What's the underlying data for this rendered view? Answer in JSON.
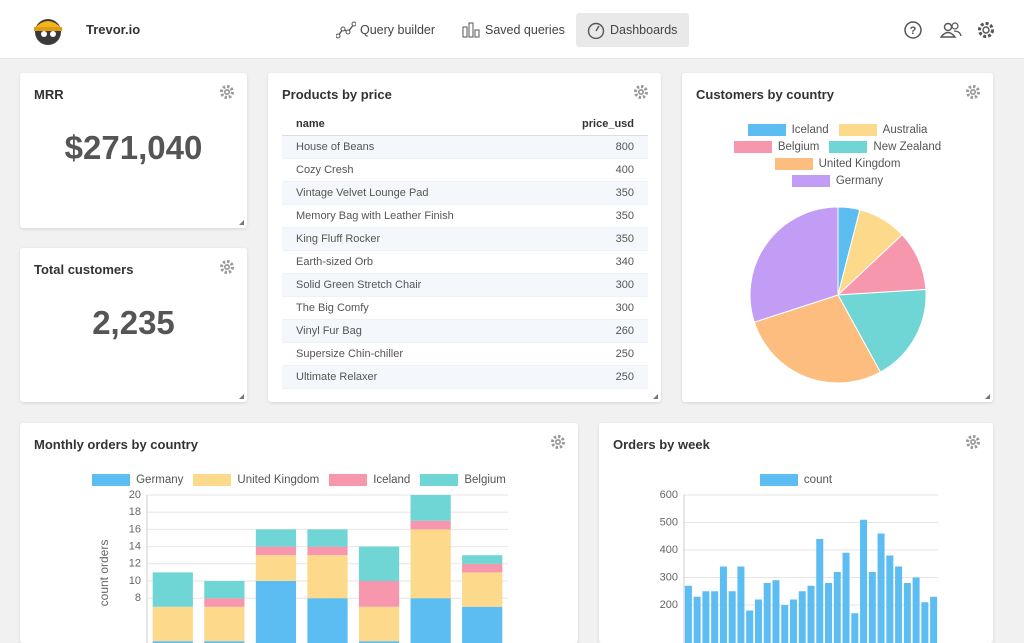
{
  "header": {
    "brand": "Trevor.io",
    "nav": [
      "Query builder",
      "Saved queries",
      "Dashboards"
    ],
    "active_nav": 2
  },
  "mrr": {
    "title": "MRR",
    "value": "$271,040"
  },
  "customers": {
    "title": "Total customers",
    "value": "2,235"
  },
  "products": {
    "title": "Products by price",
    "columns": [
      "name",
      "price_usd"
    ],
    "rows": [
      [
        "House of Beans",
        800
      ],
      [
        "Cozy Cresh",
        400
      ],
      [
        "Vintage Velvet Lounge Pad",
        350
      ],
      [
        "Memory Bag with Leather Finish",
        350
      ],
      [
        "King Fluff Rocker",
        350
      ],
      [
        "Earth-sized Orb",
        340
      ],
      [
        "Solid Green Stretch Chair",
        300
      ],
      [
        "The Big Comfy",
        300
      ],
      [
        "Vinyl Fur Bag",
        260
      ],
      [
        "Supersize Chin-chiller",
        250
      ],
      [
        "Ultimate Relaxer",
        250
      ]
    ]
  },
  "chart_data": [
    {
      "type": "pie",
      "title": "Customers by country",
      "categories": [
        "Iceland",
        "Australia",
        "Belgium",
        "New Zealand",
        "United Kingdom",
        "Germany"
      ],
      "values": [
        4,
        9,
        11,
        18,
        28,
        30
      ],
      "colors": [
        "#5cbdf2",
        "#fdd98b",
        "#f797ae",
        "#6fd6d5",
        "#fcbd7e",
        "#c29cf5"
      ]
    },
    {
      "type": "stacked_bar",
      "title": "Monthly orders by country",
      "y_label": "count orders",
      "categories": [
        null,
        null,
        null,
        null,
        null,
        null,
        null
      ],
      "series": [
        {
          "name": "Germany",
          "color": "#5cbdf2",
          "values": [
            3,
            3,
            10,
            8,
            3,
            8,
            7
          ]
        },
        {
          "name": "United Kingdom",
          "color": "#fdd98b",
          "values": [
            4,
            4,
            3,
            5,
            4,
            8,
            4
          ]
        },
        {
          "name": "Iceland",
          "color": "#f797ae",
          "values": [
            0,
            1,
            1,
            1,
            3,
            1,
            1
          ]
        },
        {
          "name": "Belgium",
          "color": "#6fd6d5",
          "values": [
            4,
            2,
            2,
            2,
            4,
            3,
            1
          ]
        }
      ],
      "ylim": [
        0,
        20
      ],
      "yticks": [
        8,
        10,
        12,
        14,
        16,
        18,
        20
      ],
      "grid": true
    },
    {
      "type": "bar",
      "title": "Orders by week",
      "categories": [
        null,
        null,
        null,
        null,
        null,
        null,
        null,
        null,
        null,
        null,
        null,
        null,
        null,
        null,
        null,
        null,
        null,
        null,
        null,
        null,
        null,
        null,
        null,
        null,
        null,
        null,
        null,
        null,
        null
      ],
      "series": [
        {
          "name": "count",
          "color": "#5cbdf2",
          "values": [
            270,
            230,
            250,
            250,
            340,
            250,
            340,
            180,
            220,
            280,
            290,
            200,
            220,
            250,
            270,
            440,
            280,
            320,
            390,
            170,
            510,
            320,
            460,
            380,
            340,
            280,
            300,
            210,
            230
          ]
        }
      ],
      "ylim": [
        0,
        600
      ],
      "yticks": [
        200,
        300,
        400,
        500,
        600
      ],
      "grid": true
    }
  ]
}
